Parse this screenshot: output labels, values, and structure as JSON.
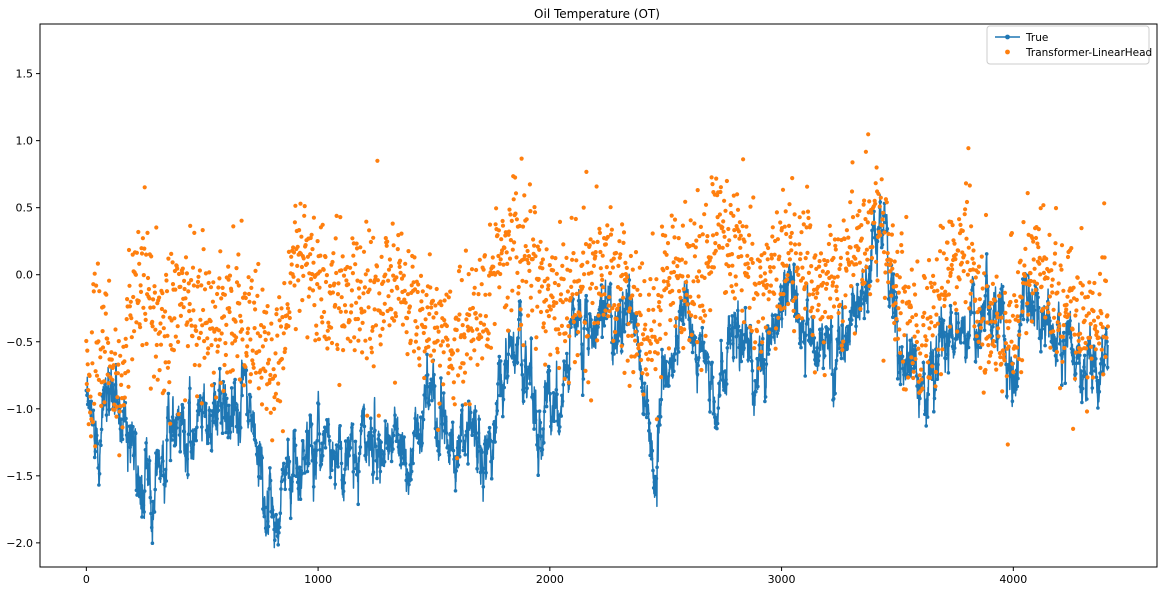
{
  "chart_data": {
    "type": "line",
    "title": "Oil Temperature (OT)",
    "xlabel": "",
    "ylabel": "",
    "xlim": [
      -200,
      4620
    ],
    "ylim": [
      -2.18,
      1.87
    ],
    "x_ticks": [
      0,
      1000,
      2000,
      3000,
      4000
    ],
    "y_ticks": [
      -2.0,
      -1.5,
      -1.0,
      -0.5,
      0.0,
      0.5,
      1.0,
      1.5
    ],
    "x_tick_labels": [
      "0",
      "1000",
      "2000",
      "3000",
      "4000"
    ],
    "y_tick_labels": [
      "−2.0",
      "−1.5",
      "−1.0",
      "−0.5",
      "0.0",
      "0.5",
      "1.0",
      "1.5"
    ],
    "grid": false,
    "legend_position": "upper right",
    "n_points": 4410,
    "series": [
      {
        "name": "True",
        "style": "line-with-dot-markers",
        "color": "#1f77b4",
        "x": [
          0,
          50,
          100,
          150,
          200,
          220,
          240,
          260,
          300,
          350,
          400,
          450,
          500,
          550,
          600,
          650,
          700,
          750,
          780,
          800,
          830,
          850,
          900,
          950,
          1000,
          1050,
          1100,
          1150,
          1200,
          1250,
          1300,
          1350,
          1400,
          1450,
          1500,
          1550,
          1600,
          1650,
          1700,
          1750,
          1800,
          1850,
          1900,
          1950,
          2000,
          2050,
          2100,
          2150,
          2200,
          2250,
          2300,
          2350,
          2400,
          2430,
          2450,
          2470,
          2500,
          2550,
          2600,
          2650,
          2700,
          2750,
          2800,
          2850,
          2900,
          2950,
          3000,
          3050,
          3100,
          3150,
          3200,
          3250,
          3300,
          3350,
          3400,
          3450,
          3500,
          3550,
          3600,
          3650,
          3700,
          3750,
          3800,
          3850,
          3900,
          3950,
          4000,
          4050,
          4100,
          4150,
          4200,
          4250,
          4300,
          4350,
          4400
        ],
        "y": [
          -1.05,
          -1.15,
          -0.8,
          -1.05,
          -1.1,
          -1.5,
          -1.8,
          -1.6,
          -1.45,
          -1.25,
          -1.2,
          -1.2,
          -0.9,
          -1.1,
          -1.0,
          -0.95,
          -1.0,
          -1.4,
          -1.75,
          -1.85,
          -1.9,
          -1.55,
          -1.4,
          -1.3,
          -1.2,
          -1.25,
          -1.3,
          -1.25,
          -1.2,
          -1.3,
          -1.1,
          -1.35,
          -1.45,
          -1.0,
          -0.9,
          -1.2,
          -1.3,
          -1.1,
          -1.4,
          -1.3,
          -0.75,
          -0.5,
          -0.6,
          -1.2,
          -0.85,
          -1.0,
          -0.45,
          -0.3,
          -0.3,
          -0.25,
          -0.4,
          -0.3,
          -0.8,
          -1.1,
          -1.5,
          -1.05,
          -0.9,
          -0.4,
          -0.3,
          -0.55,
          -1.0,
          -0.7,
          -0.4,
          -0.65,
          -0.75,
          -0.55,
          -0.15,
          -0.05,
          -0.3,
          -0.6,
          -0.55,
          -0.55,
          -0.35,
          -0.2,
          0.3,
          0.2,
          -0.45,
          -0.6,
          -0.8,
          -0.7,
          -0.45,
          -0.45,
          -0.3,
          -0.4,
          -0.25,
          -0.5,
          -0.8,
          -0.1,
          -0.2,
          -0.35,
          -0.55,
          -0.55,
          -0.75,
          -0.6,
          -0.45
        ]
      },
      {
        "name": "Transformer-LinearHead",
        "style": "dot-markers",
        "color": "#ff7f0e",
        "x": [
          0,
          50,
          100,
          150,
          200,
          250,
          300,
          350,
          400,
          450,
          500,
          550,
          600,
          650,
          700,
          750,
          800,
          850,
          900,
          950,
          1000,
          1050,
          1100,
          1150,
          1200,
          1250,
          1300,
          1350,
          1400,
          1450,
          1500,
          1550,
          1600,
          1650,
          1700,
          1750,
          1800,
          1850,
          1900,
          1950,
          2000,
          2050,
          2100,
          2150,
          2200,
          2250,
          2300,
          2350,
          2400,
          2450,
          2500,
          2550,
          2600,
          2650,
          2700,
          2750,
          2800,
          2850,
          2900,
          2950,
          3000,
          3050,
          3100,
          3150,
          3200,
          3250,
          3300,
          3350,
          3400,
          3450,
          3500,
          3550,
          3600,
          3650,
          3700,
          3750,
          3800,
          3850,
          3900,
          3950,
          4000,
          4050,
          4100,
          4150,
          4200,
          4250,
          4300,
          4350,
          4400
        ],
        "y": [
          -0.8,
          -0.65,
          -0.55,
          -0.9,
          -0.15,
          0.0,
          -0.35,
          -0.45,
          -0.2,
          -0.15,
          -0.3,
          -0.4,
          -0.25,
          -0.3,
          -0.4,
          -0.5,
          -0.9,
          -0.3,
          0.0,
          0.15,
          -0.05,
          -0.25,
          -0.15,
          -0.15,
          -0.2,
          -0.15,
          -0.1,
          -0.05,
          -0.2,
          -0.35,
          -0.4,
          -0.5,
          -0.6,
          -0.4,
          -0.25,
          -0.05,
          0.2,
          0.3,
          0.15,
          -0.1,
          -0.3,
          -0.35,
          -0.15,
          0.0,
          0.05,
          0.1,
          -0.15,
          -0.25,
          -0.45,
          -0.4,
          -0.1,
          0.0,
          -0.05,
          0.05,
          0.2,
          0.25,
          0.3,
          0.1,
          -0.2,
          -0.05,
          0.0,
          0.1,
          0.05,
          -0.1,
          -0.05,
          0.05,
          0.15,
          0.25,
          0.5,
          0.3,
          -0.2,
          -0.35,
          -0.55,
          -0.4,
          -0.1,
          0.1,
          0.3,
          -0.35,
          -0.3,
          -0.5,
          -0.35,
          0.05,
          0.1,
          -0.1,
          -0.15,
          -0.2,
          -0.3,
          -0.35,
          -0.2
        ]
      }
    ]
  }
}
